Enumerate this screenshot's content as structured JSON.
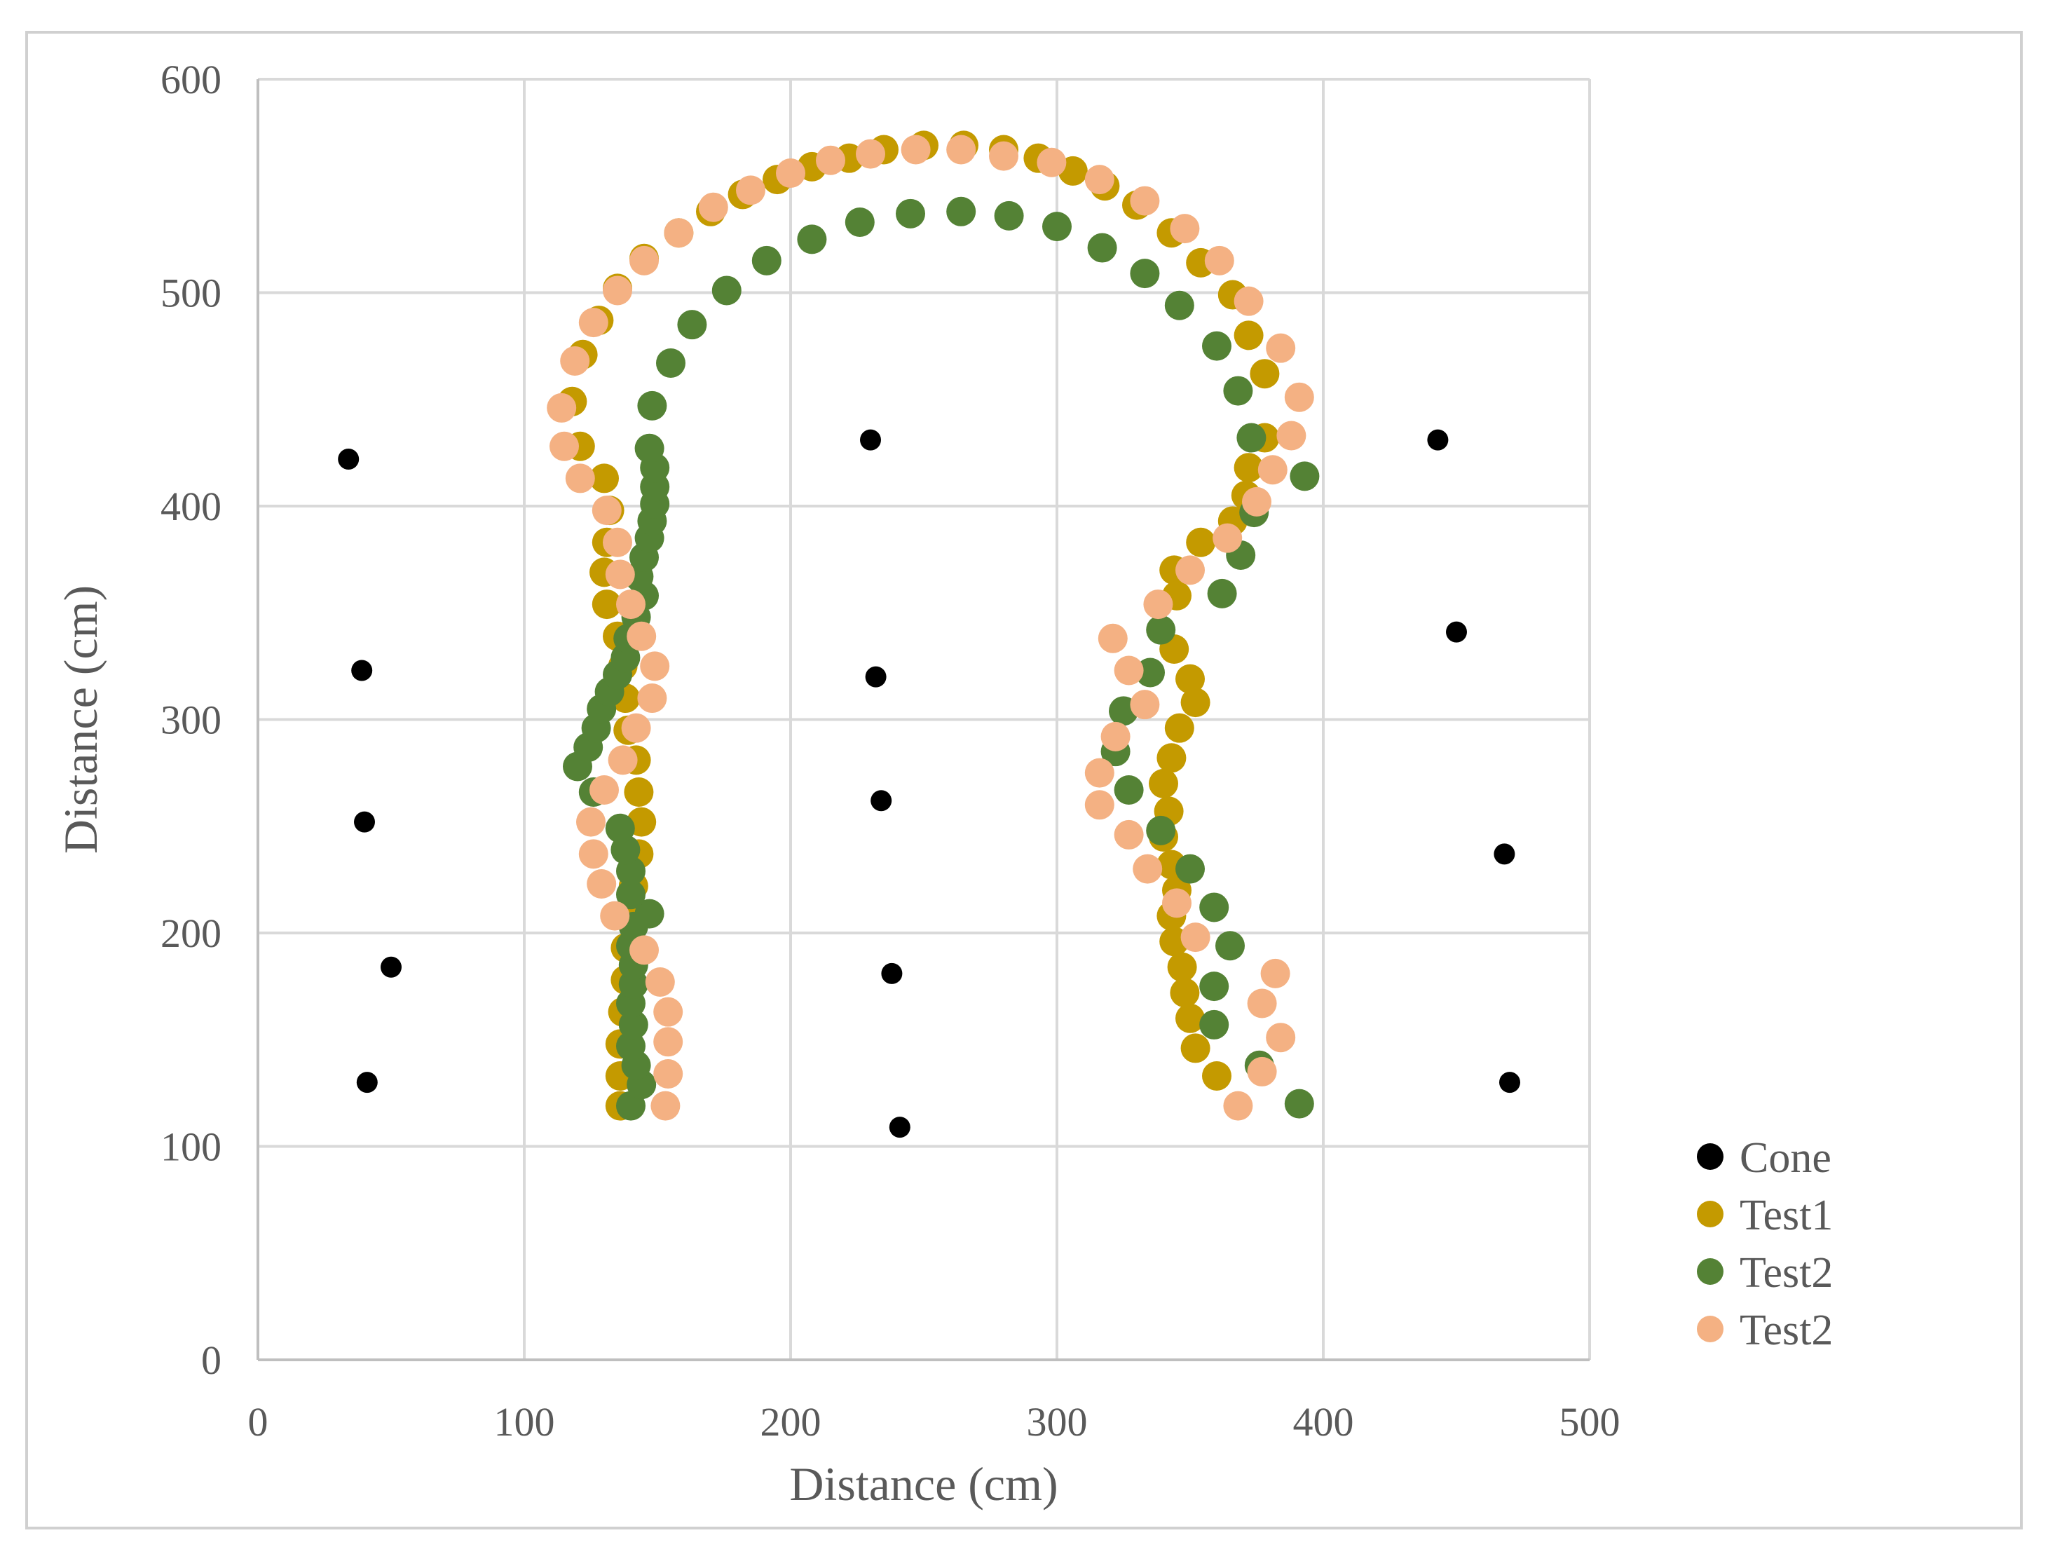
{
  "chart_data": {
    "type": "scatter",
    "title": "",
    "xlabel": "Distance (cm)",
    "ylabel": "Distance (cm)",
    "xlim": [
      0,
      500
    ],
    "ylim": [
      0,
      600
    ],
    "xticks": [
      0,
      100,
      200,
      300,
      400,
      500
    ],
    "yticks": [
      0,
      100,
      200,
      300,
      400,
      500,
      600
    ],
    "grid": true,
    "legend_position": "bottom-right",
    "series": [
      {
        "name": "Cone",
        "color": "#000000",
        "points": [
          [
            34,
            422
          ],
          [
            39,
            323
          ],
          [
            40,
            252
          ],
          [
            50,
            184
          ],
          [
            41,
            130
          ],
          [
            230,
            431
          ],
          [
            232,
            320
          ],
          [
            234,
            262
          ],
          [
            238,
            181
          ],
          [
            241,
            109
          ],
          [
            443,
            431
          ],
          [
            450,
            341
          ],
          [
            468,
            237
          ],
          [
            470,
            130
          ]
        ]
      },
      {
        "name": "Test1",
        "color": "#c49a00",
        "points": [
          [
            136,
            119
          ],
          [
            136,
            133
          ],
          [
            136,
            148
          ],
          [
            137,
            163
          ],
          [
            138,
            178
          ],
          [
            138,
            193
          ],
          [
            140,
            208
          ],
          [
            141,
            222
          ],
          [
            143,
            237
          ],
          [
            144,
            252
          ],
          [
            143,
            266
          ],
          [
            142,
            281
          ],
          [
            139,
            295
          ],
          [
            138,
            310
          ],
          [
            137,
            325
          ],
          [
            135,
            339
          ],
          [
            131,
            354
          ],
          [
            130,
            369
          ],
          [
            131,
            383
          ],
          [
            132,
            398
          ],
          [
            130,
            413
          ],
          [
            121,
            428
          ],
          [
            118,
            449
          ],
          [
            122,
            471
          ],
          [
            128,
            487
          ],
          [
            135,
            502
          ],
          [
            145,
            516
          ],
          [
            158,
            528
          ],
          [
            170,
            538
          ],
          [
            182,
            546
          ],
          [
            195,
            553
          ],
          [
            208,
            559
          ],
          [
            222,
            563
          ],
          [
            235,
            567
          ],
          [
            250,
            569
          ],
          [
            265,
            569
          ],
          [
            280,
            567
          ],
          [
            293,
            563
          ],
          [
            306,
            557
          ],
          [
            318,
            550
          ],
          [
            330,
            541
          ],
          [
            343,
            528
          ],
          [
            354,
            514
          ],
          [
            366,
            499
          ],
          [
            372,
            480
          ],
          [
            378,
            462
          ],
          [
            378,
            432
          ],
          [
            372,
            418
          ],
          [
            371,
            405
          ],
          [
            366,
            393
          ],
          [
            354,
            383
          ],
          [
            344,
            370
          ],
          [
            345,
            358
          ],
          [
            344,
            333
          ],
          [
            350,
            319
          ],
          [
            352,
            308
          ],
          [
            346,
            296
          ],
          [
            343,
            282
          ],
          [
            340,
            270
          ],
          [
            342,
            257
          ],
          [
            340,
            245
          ],
          [
            343,
            232
          ],
          [
            345,
            220
          ],
          [
            343,
            208
          ],
          [
            344,
            196
          ],
          [
            347,
            184
          ],
          [
            348,
            172
          ],
          [
            350,
            160
          ],
          [
            352,
            146
          ],
          [
            360,
            133
          ]
        ]
      },
      {
        "name": "Test2",
        "color": "#548235",
        "points": [
          [
            140,
            119
          ],
          [
            144,
            129
          ],
          [
            142,
            138
          ],
          [
            140,
            147
          ],
          [
            141,
            157
          ],
          [
            140,
            167
          ],
          [
            141,
            176
          ],
          [
            141,
            185
          ],
          [
            140,
            194
          ],
          [
            141,
            203
          ],
          [
            147,
            209
          ],
          [
            140,
            218
          ],
          [
            140,
            229
          ],
          [
            138,
            239
          ],
          [
            136,
            249
          ],
          [
            126,
            266
          ],
          [
            120,
            278
          ],
          [
            124,
            287
          ],
          [
            127,
            296
          ],
          [
            129,
            305
          ],
          [
            132,
            313
          ],
          [
            135,
            321
          ],
          [
            138,
            329
          ],
          [
            139,
            338
          ],
          [
            142,
            348
          ],
          [
            145,
            358
          ],
          [
            143,
            367
          ],
          [
            145,
            376
          ],
          [
            147,
            385
          ],
          [
            148,
            393
          ],
          [
            149,
            401
          ],
          [
            149,
            409
          ],
          [
            149,
            418
          ],
          [
            147,
            427
          ],
          [
            148,
            447
          ],
          [
            155,
            467
          ],
          [
            163,
            485
          ],
          [
            176,
            501
          ],
          [
            191,
            515
          ],
          [
            208,
            525
          ],
          [
            226,
            533
          ],
          [
            245,
            537
          ],
          [
            264,
            538
          ],
          [
            282,
            536
          ],
          [
            300,
            531
          ],
          [
            317,
            521
          ],
          [
            333,
            509
          ],
          [
            346,
            494
          ],
          [
            360,
            475
          ],
          [
            368,
            454
          ],
          [
            373,
            432
          ],
          [
            393,
            414
          ],
          [
            374,
            397
          ],
          [
            369,
            377
          ],
          [
            362,
            359
          ],
          [
            339,
            342
          ],
          [
            335,
            322
          ],
          [
            325,
            304
          ],
          [
            322,
            285
          ],
          [
            327,
            267
          ],
          [
            339,
            248
          ],
          [
            350,
            230
          ],
          [
            359,
            212
          ],
          [
            365,
            194
          ],
          [
            359,
            175
          ],
          [
            359,
            157
          ],
          [
            376,
            138
          ],
          [
            391,
            120
          ]
        ]
      },
      {
        "name": "Test2",
        "color": "#f4b183",
        "points": [
          [
            153,
            119
          ],
          [
            154,
            134
          ],
          [
            154,
            149
          ],
          [
            154,
            163
          ],
          [
            151,
            177
          ],
          [
            145,
            192
          ],
          [
            134,
            208
          ],
          [
            129,
            223
          ],
          [
            126,
            237
          ],
          [
            125,
            252
          ],
          [
            130,
            267
          ],
          [
            137,
            281
          ],
          [
            142,
            296
          ],
          [
            148,
            310
          ],
          [
            149,
            325
          ],
          [
            144,
            339
          ],
          [
            140,
            354
          ],
          [
            136,
            368
          ],
          [
            135,
            383
          ],
          [
            131,
            398
          ],
          [
            121,
            413
          ],
          [
            115,
            428
          ],
          [
            114,
            446
          ],
          [
            119,
            468
          ],
          [
            126,
            486
          ],
          [
            135,
            501
          ],
          [
            145,
            515
          ],
          [
            158,
            528
          ],
          [
            171,
            540
          ],
          [
            185,
            548
          ],
          [
            200,
            556
          ],
          [
            215,
            562
          ],
          [
            230,
            565
          ],
          [
            247,
            567
          ],
          [
            264,
            567
          ],
          [
            280,
            564
          ],
          [
            298,
            561
          ],
          [
            316,
            553
          ],
          [
            333,
            543
          ],
          [
            348,
            530
          ],
          [
            361,
            515
          ],
          [
            372,
            496
          ],
          [
            384,
            474
          ],
          [
            391,
            451
          ],
          [
            388,
            433
          ],
          [
            381,
            417
          ],
          [
            375,
            402
          ],
          [
            364,
            385
          ],
          [
            350,
            370
          ],
          [
            338,
            354
          ],
          [
            321,
            338
          ],
          [
            327,
            323
          ],
          [
            333,
            307
          ],
          [
            322,
            292
          ],
          [
            316,
            275
          ],
          [
            316,
            260
          ],
          [
            327,
            246
          ],
          [
            334,
            230
          ],
          [
            345,
            214
          ],
          [
            352,
            198
          ],
          [
            382,
            181
          ],
          [
            377,
            167
          ],
          [
            384,
            151
          ],
          [
            377,
            135
          ],
          [
            368,
            119
          ]
        ]
      }
    ]
  }
}
